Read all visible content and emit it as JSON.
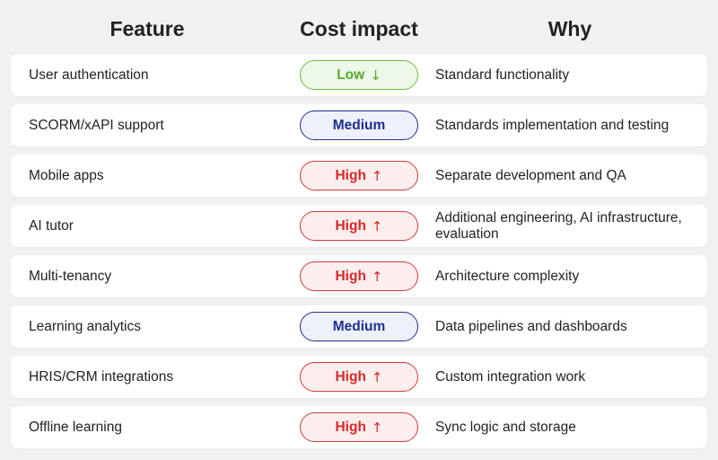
{
  "header": {
    "feature": "Feature",
    "cost_impact": "Cost impact",
    "why": "Why"
  },
  "colors": {
    "low": "#56a82f",
    "medium": "#1d2f8f",
    "high": "#d62828"
  },
  "rows": [
    {
      "feature": "User authentication",
      "cost": "Low",
      "level": "low",
      "arrow": "↓",
      "why": "Standard functionality"
    },
    {
      "feature": "SCORM/xAPI support",
      "cost": "Medium",
      "level": "medium",
      "arrow": "",
      "why": "Standards implementation and testing"
    },
    {
      "feature": "Mobile apps",
      "cost": "High",
      "level": "high",
      "arrow": "↑",
      "why": "Separate development and QA"
    },
    {
      "feature": "AI tutor",
      "cost": "High",
      "level": "high",
      "arrow": "↑",
      "why": "Additional engineering, AI infrastructure, evaluation"
    },
    {
      "feature": "Multi-tenancy",
      "cost": "High",
      "level": "high",
      "arrow": "↑",
      "why": "Architecture complexity"
    },
    {
      "feature": "Learning analytics",
      "cost": "Medium",
      "level": "medium",
      "arrow": "",
      "why": "Data pipelines and dashboards"
    },
    {
      "feature": "HRIS/CRM integrations",
      "cost": "High",
      "level": "high",
      "arrow": "↑",
      "why": "Custom integration work"
    },
    {
      "feature": "Offline learning",
      "cost": "High",
      "level": "high",
      "arrow": "↑",
      "why": "Sync logic and storage"
    }
  ]
}
